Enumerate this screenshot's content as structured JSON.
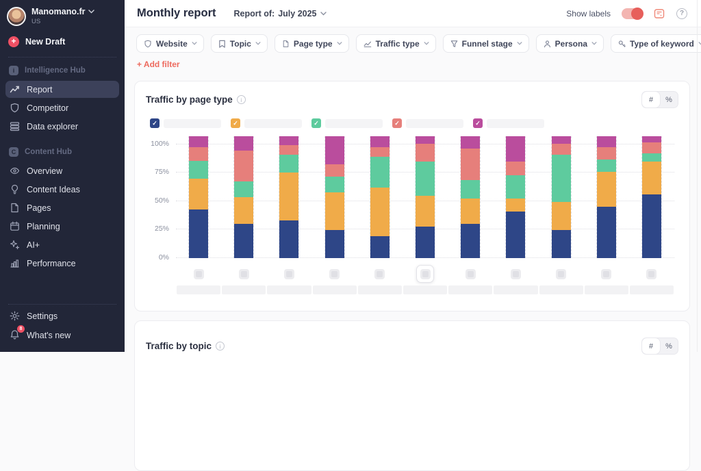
{
  "sidebar": {
    "workspace_name": "Manomano.fr",
    "workspace_region": "US",
    "new_draft": "New Draft",
    "group1_label": "Intelligence Hub",
    "report": "Report",
    "competitor": "Competitor",
    "data_explorer": "Data explorer",
    "group2_label": "Content Hub",
    "overview": "Overview",
    "content_ideas": "Content Ideas",
    "pages": "Pages",
    "planning": "Planning",
    "ai_plus": "AI+",
    "performance": "Performance",
    "settings": "Settings",
    "whats_new": "What's new",
    "whats_new_badge": "8"
  },
  "header": {
    "title": "Monthly report",
    "report_of_label": "Report of:",
    "report_period": "July 2025",
    "show_labels": "Show labels"
  },
  "filters": {
    "chips": [
      {
        "label": "Website",
        "icon": "shield"
      },
      {
        "label": "Topic",
        "icon": "bookmark"
      },
      {
        "label": "Page type",
        "icon": "file"
      },
      {
        "label": "Traffic type",
        "icon": "trend"
      },
      {
        "label": "Funnel stage",
        "icon": "funnel"
      },
      {
        "label": "Persona",
        "icon": "person"
      },
      {
        "label": "Type of keyword",
        "icon": "key"
      }
    ],
    "add_filter": "+ Add filter"
  },
  "card1": {
    "title": "Traffic by page type",
    "unit_number": "#",
    "unit_percent": "%"
  },
  "card2": {
    "title": "Traffic by topic",
    "unit_number": "#",
    "unit_percent": "%"
  },
  "colors": {
    "accent_red": "#ef5064",
    "add_filter_red": "#ed6a5e",
    "toggle_track": "#f3b5b1",
    "toggle_knob": "#e75f5b"
  },
  "chart_data": {
    "type": "bar",
    "stacked": true,
    "title": "Traffic by page type",
    "ylim": [
      0,
      100
    ],
    "yticks": [
      "0%",
      "25%",
      "50%",
      "75%",
      "100%"
    ],
    "grid": "horizontal-dotted",
    "legend_position": "top",
    "legend_labels_redacted": true,
    "categories_redacted": true,
    "category_count": 11,
    "focused_category_index": 5,
    "series": [
      {
        "name": "segment-1-redacted",
        "color": "#2e4687",
        "values": [
          40,
          28,
          31,
          23,
          18,
          26,
          28,
          38,
          23,
          42,
          52
        ]
      },
      {
        "name": "segment-2-redacted",
        "color": "#f0ab49",
        "values": [
          25,
          22,
          39,
          31,
          40,
          25,
          21,
          11,
          23,
          29,
          27
        ]
      },
      {
        "name": "segment-3-redacted",
        "color": "#5ecb9e",
        "values": [
          15,
          13,
          15,
          13,
          25,
          28,
          15,
          19,
          39,
          10,
          7
        ]
      },
      {
        "name": "segment-4-redacted",
        "color": "#e67f7b",
        "values": [
          11,
          25,
          8,
          10,
          8,
          15,
          26,
          11,
          9,
          10,
          9
        ]
      },
      {
        "name": "segment-5-redacted",
        "color": "#ba4d9d",
        "values": [
          9,
          12,
          7,
          23,
          9,
          6,
          10,
          21,
          6,
          9,
          5
        ]
      }
    ]
  }
}
